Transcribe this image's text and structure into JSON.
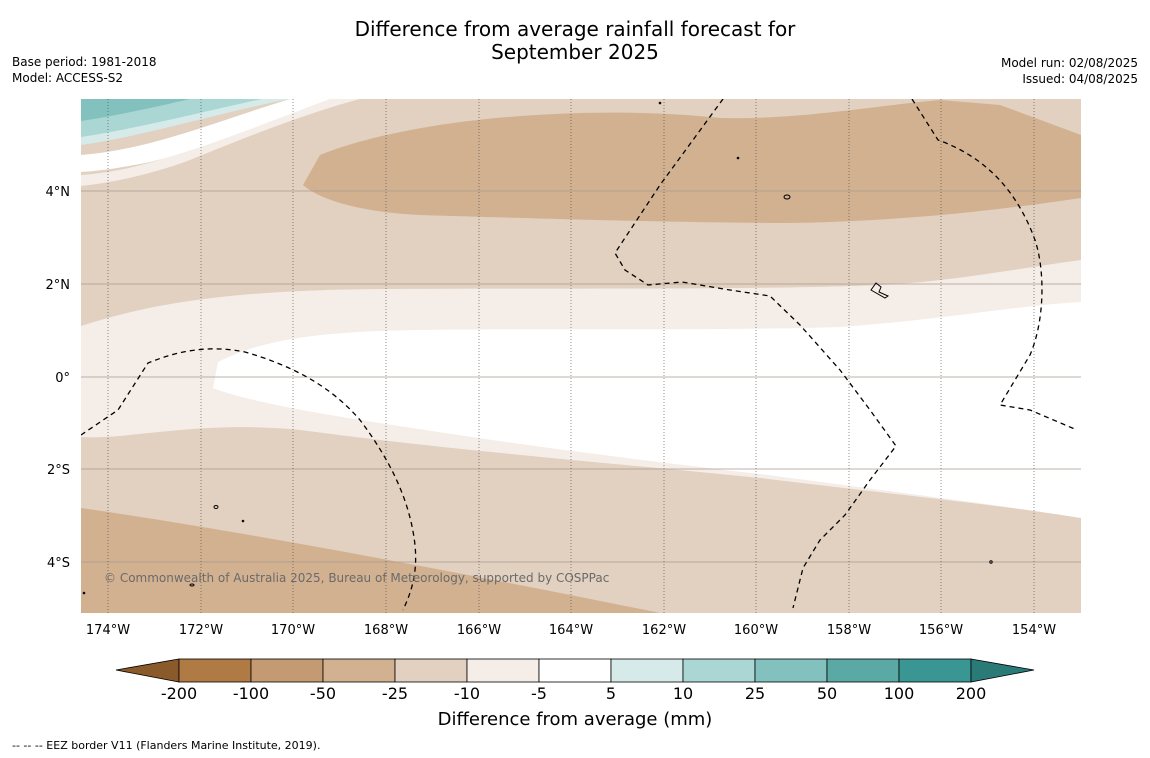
{
  "title": {
    "line1": "Difference from average rainfall forecast for",
    "line2": "September 2025"
  },
  "meta_left": {
    "base_period": "Base period: 1981-2018",
    "model": "Model: ACCESS-S2"
  },
  "meta_right": {
    "model_run": "Model run: 02/08/2025",
    "issued": "Issued: 04/08/2025"
  },
  "copyright": "© Commonwealth of Australia 2025, Bureau of Meteorology, supported by COSPPac",
  "lat_labels": [
    "4°N",
    "2°N",
    "0°",
    "2°S",
    "4°S"
  ],
  "lon_labels": [
    "174°W",
    "172°W",
    "170°W",
    "168°W",
    "166°W",
    "164°W",
    "162°W",
    "160°W",
    "158°W",
    "156°W",
    "154°W"
  ],
  "colorbar": {
    "title": "Difference from average (mm)",
    "ticks": [
      "-200",
      "-100",
      "-50",
      "-25",
      "-10",
      "-5",
      "5",
      "10",
      "25",
      "50",
      "100",
      "200"
    ],
    "colors": {
      "lt_-200": "#8a5a2b",
      "-200_-100": "#b07a45",
      "-100_-50": "#c49a72",
      "-50_-25": "#d2b191",
      "-25_-10": "#e2d0c0",
      "-10_-5": "#f4ede8",
      "-5_5": "#ffffff",
      "5_10": "#d6ebe9",
      "10_25": "#aad6d4",
      "25_50": "#82c1bd",
      "50_100": "#5ba9a5",
      "100_200": "#3a9693",
      "gt_200": "#2a7a78"
    }
  },
  "footnote": "--  --  -- EEZ border V11 (Flanders Marine Institute, 2019)."
}
